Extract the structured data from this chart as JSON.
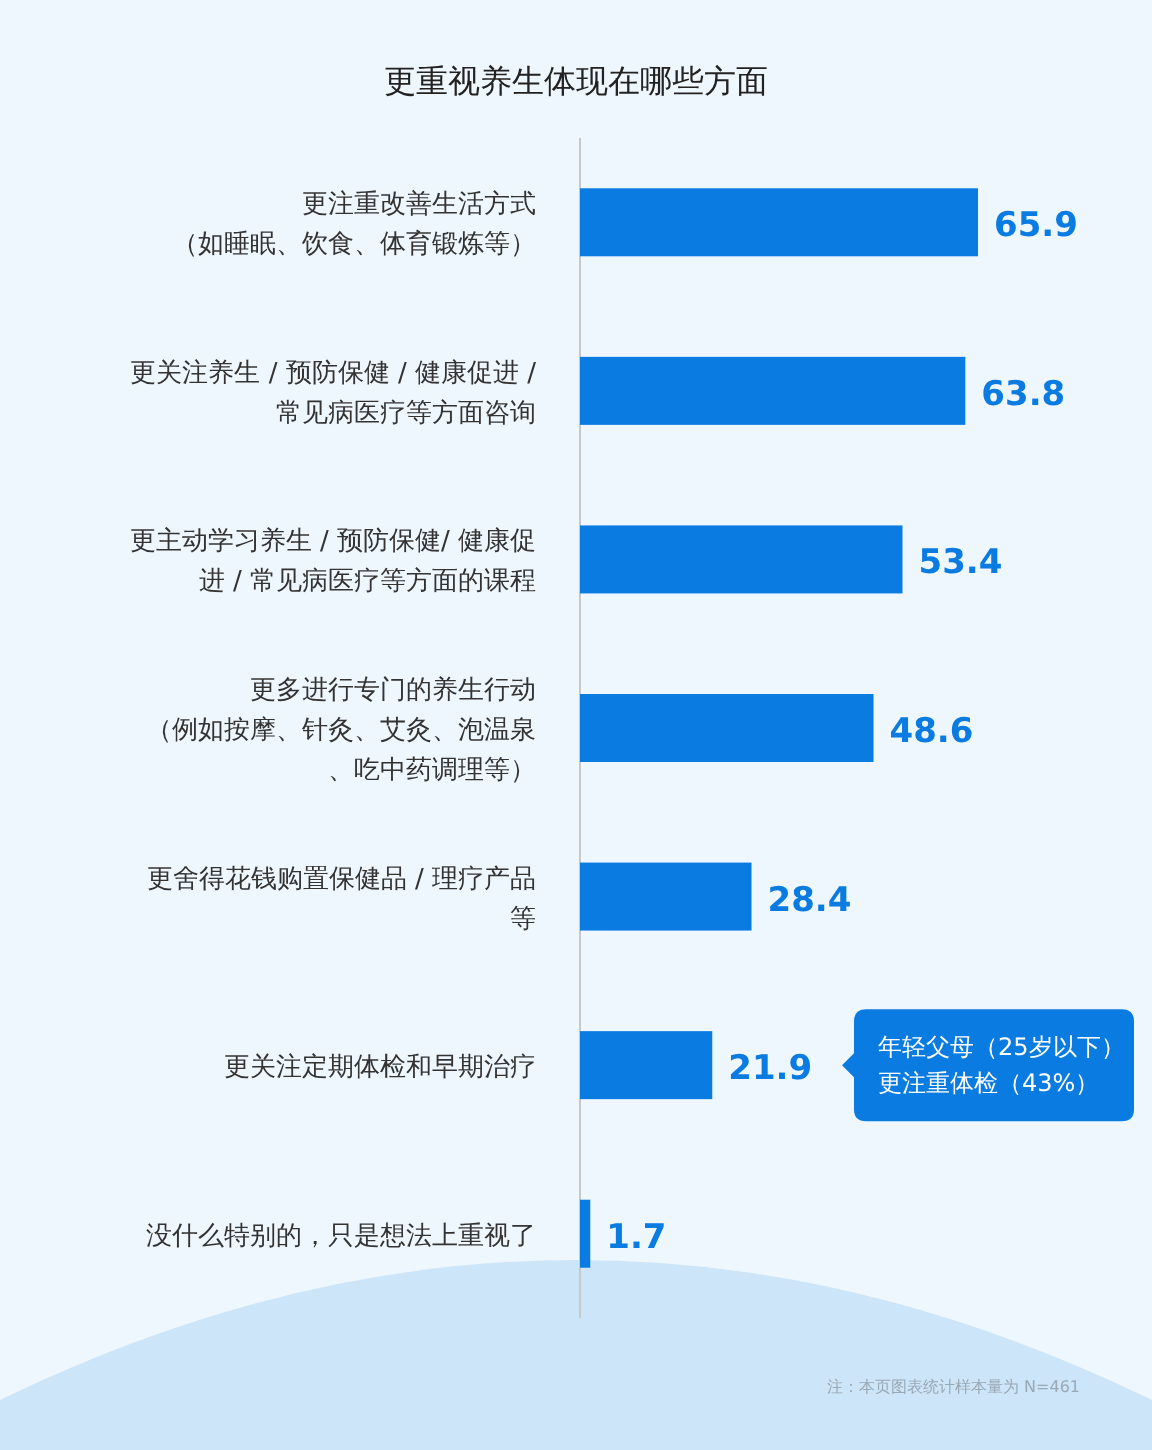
{
  "chart_data": {
    "type": "bar",
    "orientation": "horizontal",
    "title": "更重视养生体现在哪些方面",
    "categories": [
      "更注重改善生活方式（如睡眠、饮食、体育锻炼等）",
      "更关注养生 / 预防保健 / 健康促进 / 常见病医疗等方面咨询",
      "更主动学习养生 / 预防保健/ 健康促进 / 常见病医疗等方面的课程",
      "更多进行专门的养生行动（例如按摩、针灸、艾灸、泡温泉、吃中药调理等）",
      "更舍得花钱购置保健品 / 理疗产品等",
      "更关注定期体检和早期治疗",
      "没什么特别的，只是想法上重视了"
    ],
    "values": [
      65.9,
      63.8,
      53.4,
      48.6,
      28.4,
      21.9,
      1.7
    ],
    "color": "#0a7be0",
    "data_labels": true,
    "annotations": [
      "年轻父母（25岁以下）更注重体检（43%）",
      "注：本页图表统计样本量为 N=461"
    ]
  }
}
